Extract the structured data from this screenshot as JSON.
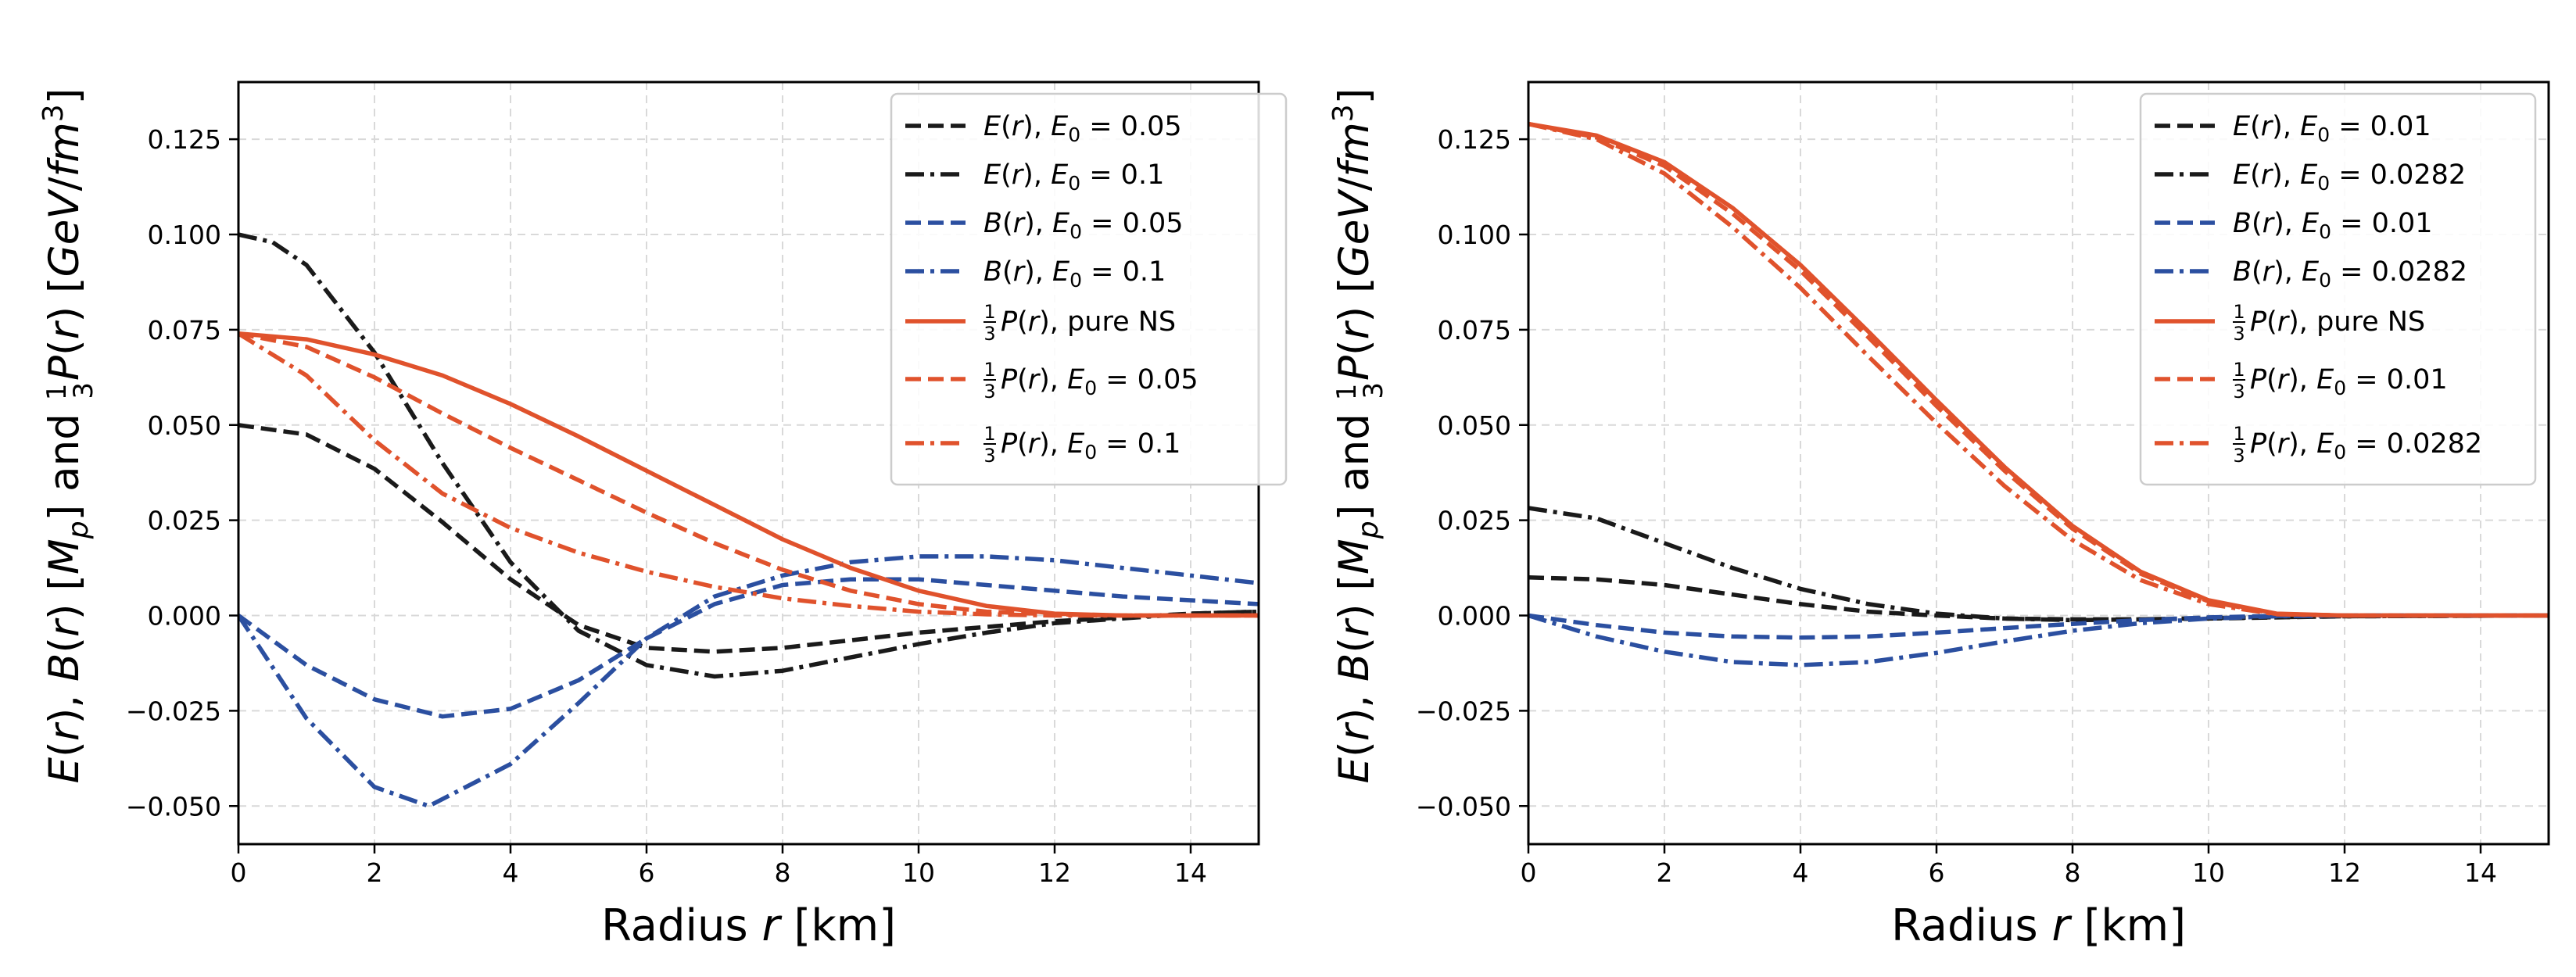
{
  "colors": {
    "E": "#1a1a1a",
    "B": "#2b4fa0",
    "P": "#e0522c",
    "grid": "#d9d9d9",
    "legend_border": "#cccccc"
  },
  "axis_labels": {
    "x": {
      "text": "Radius ",
      "var": "r",
      "unit": " [km]"
    },
    "y": {
      "p1": "E",
      "p2": "(",
      "p3": "r",
      "p4": "), ",
      "p5": "B",
      "p6": "(",
      "p7": "r",
      "p8": ") [",
      "p9": "M",
      "p10": "p",
      "p11": "] and ",
      "p12": "1",
      "p13": "3",
      "p14": "P",
      "p15": "(",
      "p16": "r",
      "p17": ") [",
      "p18": "GeV",
      "p19": "/",
      "p20": "fm",
      "p21": "3",
      "p22": "]"
    }
  },
  "chart_data": [
    {
      "type": "line",
      "xlim": [
        0,
        15
      ],
      "ylim": [
        -0.06,
        0.14
      ],
      "xticks": [
        0,
        2,
        4,
        6,
        8,
        10,
        12,
        14
      ],
      "yticks": [
        -0.05,
        -0.025,
        0.0,
        0.025,
        0.05,
        0.075,
        0.1,
        0.125
      ],
      "xtick_labels": [
        "0",
        "2",
        "4",
        "6",
        "8",
        "10",
        "12",
        "14"
      ],
      "ytick_labels": [
        "−0.050",
        "−0.025",
        "0.000",
        "0.025",
        "0.050",
        "0.075",
        "0.100",
        "0.125"
      ],
      "grid": true,
      "legend_position": "top-right",
      "series": [
        {
          "qty": "E",
          "style": "dashed",
          "color": "E",
          "label": {
            "f": "E",
            "a": "(",
            "r": "r",
            "b": "), ",
            "sym": "E",
            "sub": "0",
            "tail": " = 0.05"
          },
          "x": [
            0,
            1,
            2,
            3,
            4,
            5,
            6,
            7,
            8,
            9,
            10,
            12,
            14,
            15
          ],
          "y": [
            0.05,
            0.0475,
            0.0385,
            0.0245,
            0.0095,
            -0.0025,
            -0.0085,
            -0.0095,
            -0.0085,
            -0.0065,
            -0.0045,
            -0.0015,
            0.0005,
            0.001
          ]
        },
        {
          "qty": "E",
          "style": "dashdot",
          "color": "E",
          "label": {
            "f": "E",
            "a": "(",
            "r": "r",
            "b": "), ",
            "sym": "E",
            "sub": "0",
            "tail": " = 0.1"
          },
          "x": [
            0,
            0.5,
            1,
            2,
            3,
            4,
            5,
            6,
            7,
            8,
            9,
            10,
            11,
            12,
            14,
            15
          ],
          "y": [
            0.1,
            0.098,
            0.092,
            0.069,
            0.04,
            0.014,
            -0.004,
            -0.013,
            -0.016,
            -0.0145,
            -0.011,
            -0.0075,
            -0.0045,
            -0.002,
            0.0005,
            0.001
          ]
        },
        {
          "qty": "B",
          "style": "dashed",
          "color": "B",
          "label": {
            "f": "B",
            "a": "(",
            "r": "r",
            "b": "), ",
            "sym": "E",
            "sub": "0",
            "tail": " = 0.05"
          },
          "x": [
            0,
            1,
            2,
            3,
            4,
            5,
            6,
            7,
            8,
            9,
            10,
            11,
            12,
            13,
            14,
            15
          ],
          "y": [
            0.0,
            -0.013,
            -0.022,
            -0.0265,
            -0.0245,
            -0.017,
            -0.006,
            0.003,
            0.008,
            0.0095,
            0.0095,
            0.008,
            0.0065,
            0.005,
            0.004,
            0.003
          ]
        },
        {
          "qty": "B",
          "style": "dashdot",
          "color": "B",
          "label": {
            "f": "B",
            "a": "(",
            "r": "r",
            "b": "), ",
            "sym": "E",
            "sub": "0",
            "tail": " = 0.1"
          },
          "x": [
            0,
            1,
            2,
            2.8,
            4,
            5,
            6,
            7,
            8,
            9,
            10,
            11,
            12,
            13,
            14,
            15
          ],
          "y": [
            0.0,
            -0.027,
            -0.045,
            -0.05,
            -0.039,
            -0.023,
            -0.006,
            0.005,
            0.0105,
            0.014,
            0.0155,
            0.0155,
            0.0145,
            0.0125,
            0.0105,
            0.0085
          ]
        },
        {
          "qty": "P",
          "style": "solid",
          "color": "P",
          "label": {
            "pre": "1/3",
            "f": "P",
            "a": "(",
            "r": "r",
            "b": "), ",
            "tail": "pure NS"
          },
          "x": [
            0,
            1,
            2,
            3,
            4,
            5,
            6,
            7,
            8,
            9,
            10,
            11,
            12,
            13,
            14,
            15
          ],
          "y": [
            0.074,
            0.0725,
            0.0685,
            0.063,
            0.0555,
            0.047,
            0.038,
            0.029,
            0.02,
            0.0125,
            0.0065,
            0.0025,
            0.0005,
            0.0,
            0.0,
            0.0
          ]
        },
        {
          "qty": "P",
          "style": "dashed",
          "color": "P",
          "label": {
            "pre": "1/3",
            "f": "P",
            "a": "(",
            "r": "r",
            "b": "), ",
            "sym": "E",
            "sub": "0",
            "tail": " = 0.05"
          },
          "x": [
            0,
            1,
            2,
            3,
            4,
            5,
            6,
            7,
            8,
            9,
            10,
            11,
            12,
            13,
            14,
            15
          ],
          "y": [
            0.074,
            0.0705,
            0.0625,
            0.053,
            0.044,
            0.0355,
            0.027,
            0.019,
            0.012,
            0.0065,
            0.003,
            0.001,
            0.0003,
            0.0,
            0.0,
            0.0
          ]
        },
        {
          "qty": "P",
          "style": "dashdot",
          "color": "P",
          "label": {
            "pre": "1/3",
            "f": "P",
            "a": "(",
            "r": "r",
            "b": "), ",
            "sym": "E",
            "sub": "0",
            "tail": " = 0.1"
          },
          "x": [
            0,
            1,
            2,
            3,
            4,
            5,
            6,
            7,
            8,
            9,
            10,
            11,
            12,
            13,
            14,
            15
          ],
          "y": [
            0.074,
            0.063,
            0.046,
            0.032,
            0.023,
            0.0165,
            0.0115,
            0.0075,
            0.0045,
            0.0025,
            0.001,
            0.0003,
            0.0,
            0.0,
            0.0,
            0.0
          ]
        }
      ]
    },
    {
      "type": "line",
      "xlim": [
        0,
        15
      ],
      "ylim": [
        -0.06,
        0.14
      ],
      "xticks": [
        0,
        2,
        4,
        6,
        8,
        10,
        12,
        14
      ],
      "yticks": [
        -0.05,
        -0.025,
        0.0,
        0.025,
        0.05,
        0.075,
        0.1,
        0.125
      ],
      "xtick_labels": [
        "0",
        "2",
        "4",
        "6",
        "8",
        "10",
        "12",
        "14"
      ],
      "ytick_labels": [
        "−0.050",
        "−0.025",
        "0.000",
        "0.025",
        "0.050",
        "0.075",
        "0.100",
        "0.125"
      ],
      "grid": true,
      "legend_position": "top-right",
      "series": [
        {
          "qty": "E",
          "style": "dashed",
          "color": "E",
          "label": {
            "f": "E",
            "a": "(",
            "r": "r",
            "b": "), ",
            "sym": "E",
            "sub": "0",
            "tail": " = 0.01"
          },
          "x": [
            0,
            1,
            2,
            3,
            4,
            5,
            6,
            7,
            8,
            9,
            10,
            12,
            15
          ],
          "y": [
            0.01,
            0.0095,
            0.008,
            0.0055,
            0.003,
            0.001,
            0.0,
            -0.0008,
            -0.001,
            -0.001,
            -0.0008,
            -0.0002,
            0.0
          ]
        },
        {
          "qty": "E",
          "style": "dashdot",
          "color": "E",
          "label": {
            "f": "E",
            "a": "(",
            "r": "r",
            "b": "), ",
            "sym": "E",
            "sub": "0",
            "tail": " = 0.0282"
          },
          "x": [
            0,
            1,
            2,
            3,
            4,
            5,
            6,
            7,
            8,
            9,
            10,
            12,
            15
          ],
          "y": [
            0.0282,
            0.0255,
            0.019,
            0.0125,
            0.007,
            0.003,
            0.0005,
            -0.0008,
            -0.0012,
            -0.001,
            -0.0007,
            -0.0002,
            0.0
          ]
        },
        {
          "qty": "B",
          "style": "dashed",
          "color": "B",
          "label": {
            "f": "B",
            "a": "(",
            "r": "r",
            "b": "), ",
            "sym": "E",
            "sub": "0",
            "tail": " = 0.01"
          },
          "x": [
            0,
            1,
            2,
            3,
            4,
            5,
            6,
            7,
            8,
            9,
            10,
            11,
            12,
            15
          ],
          "y": [
            0.0,
            -0.0025,
            -0.0045,
            -0.0055,
            -0.0058,
            -0.0055,
            -0.0045,
            -0.0033,
            -0.0022,
            -0.0012,
            -0.0005,
            -0.0001,
            0.0,
            0.0
          ]
        },
        {
          "qty": "B",
          "style": "dashdot",
          "color": "B",
          "label": {
            "f": "B",
            "a": "(",
            "r": "r",
            "b": "), ",
            "sym": "E",
            "sub": "0",
            "tail": " = 0.0282"
          },
          "x": [
            0,
            1,
            2,
            3,
            4,
            5,
            6,
            7,
            8,
            9,
            10,
            11,
            12,
            15
          ],
          "y": [
            0.0,
            -0.0055,
            -0.0095,
            -0.0122,
            -0.013,
            -0.0122,
            -0.0098,
            -0.0068,
            -0.004,
            -0.002,
            -0.0008,
            -0.0002,
            0.0,
            0.0
          ]
        },
        {
          "qty": "P",
          "style": "solid",
          "color": "P",
          "label": {
            "pre": "1/3",
            "f": "P",
            "a": "(",
            "r": "r",
            "b": "), ",
            "tail": "pure NS"
          },
          "x": [
            0,
            1,
            2,
            3,
            4,
            5,
            6,
            7,
            8,
            9,
            10,
            11,
            12,
            13,
            15
          ],
          "y": [
            0.129,
            0.126,
            0.119,
            0.107,
            0.092,
            0.0745,
            0.0565,
            0.039,
            0.0235,
            0.0115,
            0.004,
            0.0005,
            0.0,
            0.0,
            0.0
          ]
        },
        {
          "qty": "P",
          "style": "dashed",
          "color": "P",
          "label": {
            "pre": "1/3",
            "f": "P",
            "a": "(",
            "r": "r",
            "b": "), ",
            "sym": "E",
            "sub": "0",
            "tail": " = 0.01"
          },
          "x": [
            0,
            1,
            2,
            3,
            4,
            5,
            6,
            7,
            8,
            9,
            10,
            11,
            12,
            13,
            15
          ],
          "y": [
            0.129,
            0.1255,
            0.118,
            0.1055,
            0.0905,
            0.073,
            0.055,
            0.038,
            0.0228,
            0.011,
            0.0037,
            0.0004,
            0.0,
            0.0,
            0.0
          ]
        },
        {
          "qty": "P",
          "style": "dashdot",
          "color": "P",
          "label": {
            "pre": "1/3",
            "f": "P",
            "a": "(",
            "r": "r",
            "b": "), ",
            "sym": "E",
            "sub": "0",
            "tail": " = 0.0282"
          },
          "x": [
            0,
            1,
            2,
            3,
            4,
            5,
            6,
            7,
            8,
            9,
            10,
            11,
            12,
            13,
            15
          ],
          "y": [
            0.129,
            0.125,
            0.116,
            0.102,
            0.086,
            0.068,
            0.0505,
            0.034,
            0.0198,
            0.0093,
            0.003,
            0.0003,
            0.0,
            0.0,
            0.0
          ]
        }
      ]
    }
  ]
}
